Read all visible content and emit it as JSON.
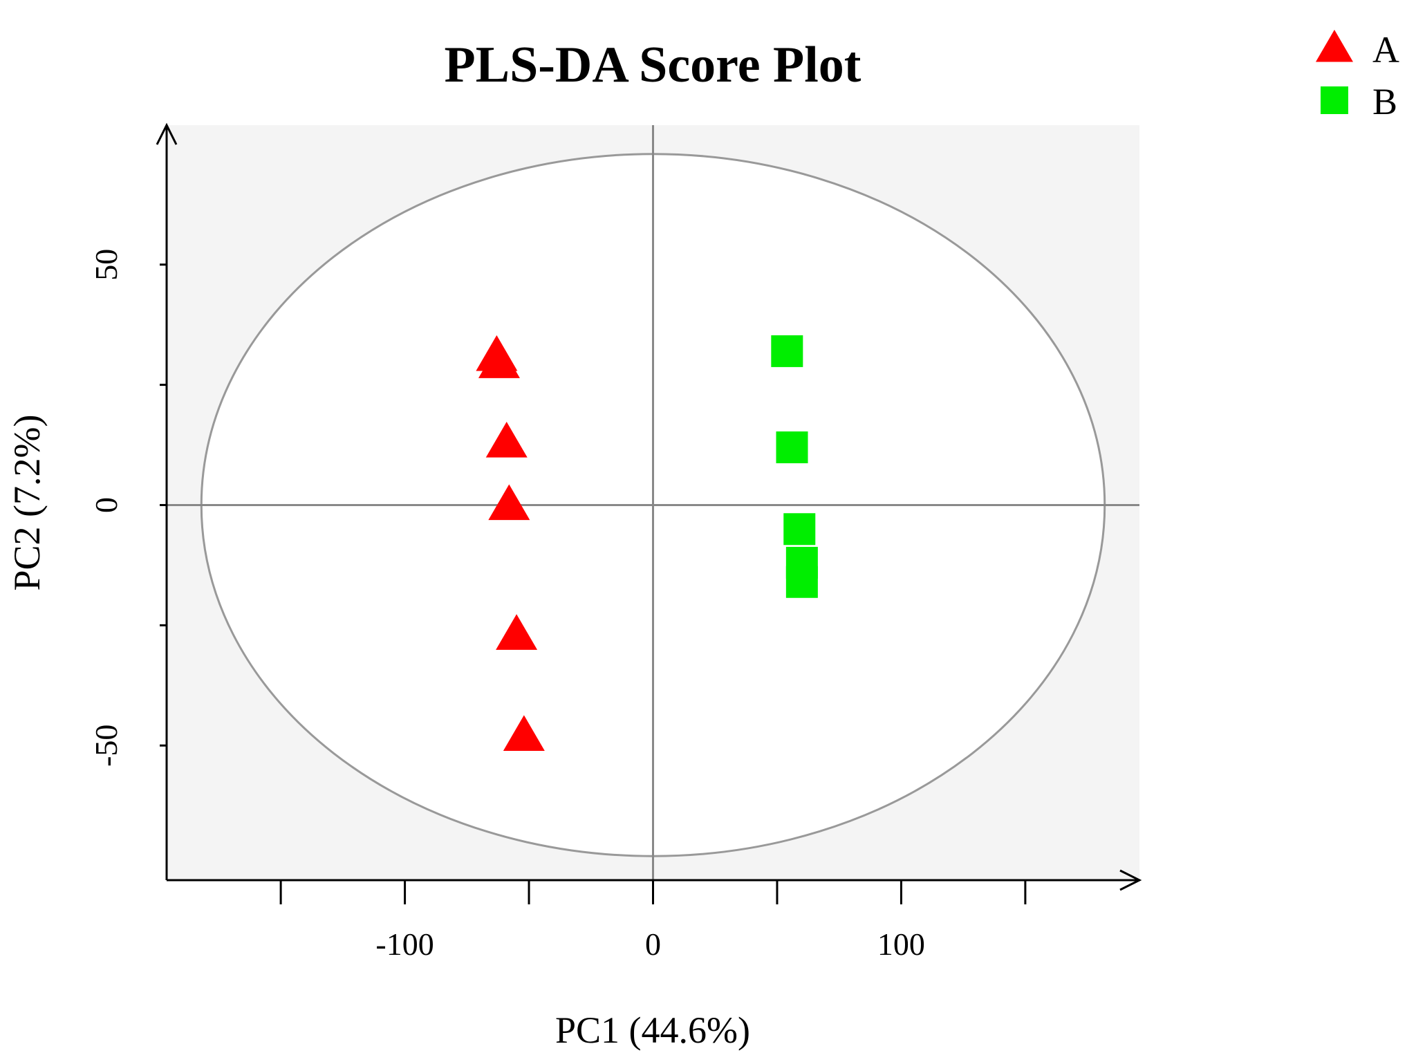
{
  "chart_data": {
    "type": "scatter",
    "title": "PLS-DA Score Plot",
    "xlabel": "PC1 (44.6%)",
    "ylabel": "PC2 (7.2%)",
    "xlim": [
      -196,
      196
    ],
    "ylim": [
      -78,
      79
    ],
    "x_ticks": [
      -150,
      -100,
      -50,
      0,
      50,
      100,
      150
    ],
    "x_tick_labels": [
      "",
      "-100",
      "",
      "0",
      "",
      "100",
      ""
    ],
    "y_ticks": [
      -50,
      -25,
      0,
      25,
      50
    ],
    "y_tick_labels": [
      "-50",
      "",
      "0",
      "",
      "50"
    ],
    "legend_position": "top-right",
    "background_color": "#f4f4f4",
    "ellipse": {
      "cx": 0,
      "cy": 0,
      "rx": 182,
      "ry": 73,
      "color": "#999999"
    },
    "reference_lines": {
      "x": 0,
      "y": 0,
      "color": "#888888"
    },
    "series": [
      {
        "name": "A",
        "marker": "triangle",
        "color": "#ff0000",
        "points": [
          [
            -63,
            31
          ],
          [
            -62,
            29.5
          ],
          [
            -59,
            13
          ],
          [
            -58,
            0
          ],
          [
            -55,
            -27
          ],
          [
            -52,
            -48
          ]
        ]
      },
      {
        "name": "B",
        "marker": "square",
        "color": "#00ee00",
        "points": [
          [
            54,
            32
          ],
          [
            56,
            12
          ],
          [
            59,
            -5
          ],
          [
            60,
            -12
          ],
          [
            60,
            -16
          ]
        ]
      }
    ]
  }
}
